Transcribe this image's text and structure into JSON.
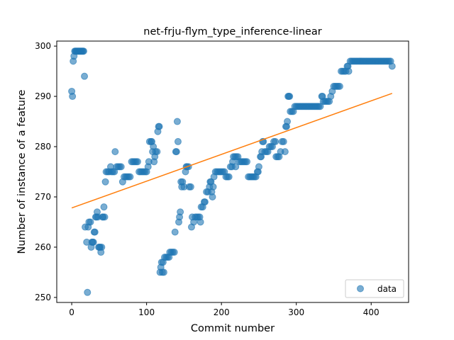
{
  "chart_data": {
    "type": "scatter",
    "title": "net-frju-flym_type_inference-linear",
    "xlabel": "Commit number",
    "ylabel": "Number of instance of a feature",
    "xlim": [
      -20,
      450
    ],
    "ylim": [
      249,
      301
    ],
    "xticks": [
      "0",
      "100",
      "200",
      "300",
      "400"
    ],
    "yticks": [
      "250",
      "260",
      "270",
      "280",
      "290",
      "300"
    ],
    "legend": {
      "position": "bottom-right",
      "entries": [
        "data"
      ]
    },
    "colors": {
      "data": "#1f77b4",
      "fit": "#ff7f0e"
    },
    "grid": false,
    "series": [
      {
        "name": "data",
        "points": [
          [
            0,
            291
          ],
          [
            1,
            290
          ],
          [
            2,
            297
          ],
          [
            3,
            298
          ],
          [
            4,
            299
          ],
          [
            5,
            299
          ],
          [
            6,
            299
          ],
          [
            7,
            299
          ],
          [
            8,
            299
          ],
          [
            9,
            299
          ],
          [
            10,
            299
          ],
          [
            11,
            299
          ],
          [
            12,
            299
          ],
          [
            13,
            299
          ],
          [
            14,
            299
          ],
          [
            15,
            299
          ],
          [
            16,
            299
          ],
          [
            17,
            294
          ],
          [
            18,
            264
          ],
          [
            20,
            261
          ],
          [
            21,
            251
          ],
          [
            22,
            264
          ],
          [
            23,
            265
          ],
          [
            25,
            265
          ],
          [
            26,
            260
          ],
          [
            27,
            261
          ],
          [
            28,
            261
          ],
          [
            29,
            261
          ],
          [
            30,
            263
          ],
          [
            31,
            263
          ],
          [
            32,
            266
          ],
          [
            33,
            266
          ],
          [
            34,
            267
          ],
          [
            35,
            266
          ],
          [
            36,
            260
          ],
          [
            37,
            260
          ],
          [
            38,
            260
          ],
          [
            39,
            259
          ],
          [
            40,
            260
          ],
          [
            41,
            266
          ],
          [
            42,
            266
          ],
          [
            43,
            268
          ],
          [
            44,
            266
          ],
          [
            45,
            273
          ],
          [
            46,
            275
          ],
          [
            48,
            275
          ],
          [
            50,
            275
          ],
          [
            52,
            276
          ],
          [
            53,
            275
          ],
          [
            55,
            275
          ],
          [
            57,
            275
          ],
          [
            58,
            279
          ],
          [
            60,
            276
          ],
          [
            62,
            276
          ],
          [
            64,
            276
          ],
          [
            66,
            276
          ],
          [
            68,
            273
          ],
          [
            70,
            274
          ],
          [
            72,
            274
          ],
          [
            74,
            274
          ],
          [
            76,
            274
          ],
          [
            78,
            274
          ],
          [
            80,
            277
          ],
          [
            82,
            277
          ],
          [
            84,
            277
          ],
          [
            86,
            277
          ],
          [
            88,
            277
          ],
          [
            90,
            275
          ],
          [
            92,
            275
          ],
          [
            94,
            275
          ],
          [
            96,
            275
          ],
          [
            98,
            275
          ],
          [
            100,
            275
          ],
          [
            102,
            276
          ],
          [
            103,
            277
          ],
          [
            104,
            281
          ],
          [
            106,
            281
          ],
          [
            107,
            281
          ],
          [
            108,
            279
          ],
          [
            109,
            280
          ],
          [
            110,
            277
          ],
          [
            111,
            278
          ],
          [
            112,
            279
          ],
          [
            114,
            279
          ],
          [
            115,
            283
          ],
          [
            116,
            284
          ],
          [
            117,
            284
          ],
          [
            118,
            255
          ],
          [
            119,
            256
          ],
          [
            120,
            257
          ],
          [
            121,
            255
          ],
          [
            122,
            257
          ],
          [
            123,
            255
          ],
          [
            124,
            258
          ],
          [
            126,
            258
          ],
          [
            128,
            258
          ],
          [
            130,
            258
          ],
          [
            131,
            259
          ],
          [
            133,
            259
          ],
          [
            135,
            259
          ],
          [
            137,
            259
          ],
          [
            138,
            263
          ],
          [
            139,
            279
          ],
          [
            140,
            279
          ],
          [
            141,
            285
          ],
          [
            142,
            281
          ],
          [
            143,
            265
          ],
          [
            144,
            266
          ],
          [
            145,
            267
          ],
          [
            146,
            273
          ],
          [
            147,
            272
          ],
          [
            148,
            273
          ],
          [
            150,
            272
          ],
          [
            152,
            275
          ],
          [
            153,
            276
          ],
          [
            154,
            276
          ],
          [
            156,
            276
          ],
          [
            157,
            272
          ],
          [
            159,
            272
          ],
          [
            160,
            264
          ],
          [
            161,
            266
          ],
          [
            163,
            265
          ],
          [
            165,
            266
          ],
          [
            167,
            266
          ],
          [
            169,
            266
          ],
          [
            171,
            266
          ],
          [
            172,
            265
          ],
          [
            173,
            268
          ],
          [
            175,
            268
          ],
          [
            177,
            269
          ],
          [
            178,
            269
          ],
          [
            180,
            271
          ],
          [
            182,
            271
          ],
          [
            184,
            272
          ],
          [
            185,
            273
          ],
          [
            186,
            273
          ],
          [
            187,
            271
          ],
          [
            188,
            270
          ],
          [
            189,
            272
          ],
          [
            190,
            274
          ],
          [
            192,
            275
          ],
          [
            194,
            275
          ],
          [
            196,
            275
          ],
          [
            198,
            275
          ],
          [
            200,
            275
          ],
          [
            202,
            275
          ],
          [
            204,
            275
          ],
          [
            206,
            274
          ],
          [
            208,
            274
          ],
          [
            210,
            274
          ],
          [
            212,
            276
          ],
          [
            214,
            276
          ],
          [
            215,
            277
          ],
          [
            216,
            278
          ],
          [
            218,
            278
          ],
          [
            219,
            276
          ],
          [
            220,
            278
          ],
          [
            222,
            278
          ],
          [
            224,
            277
          ],
          [
            226,
            277
          ],
          [
            228,
            277
          ],
          [
            230,
            277
          ],
          [
            232,
            277
          ],
          [
            234,
            277
          ],
          [
            236,
            274
          ],
          [
            238,
            274
          ],
          [
            240,
            274
          ],
          [
            242,
            274
          ],
          [
            244,
            274
          ],
          [
            246,
            274
          ],
          [
            248,
            275
          ],
          [
            249,
            275
          ],
          [
            250,
            276
          ],
          [
            252,
            278
          ],
          [
            253,
            278
          ],
          [
            254,
            279
          ],
          [
            255,
            281
          ],
          [
            256,
            281
          ],
          [
            258,
            279
          ],
          [
            260,
            279
          ],
          [
            262,
            279
          ],
          [
            264,
            280
          ],
          [
            266,
            280
          ],
          [
            268,
            280
          ],
          [
            270,
            281
          ],
          [
            272,
            281
          ],
          [
            273,
            278
          ],
          [
            275,
            278
          ],
          [
            277,
            278
          ],
          [
            279,
            279
          ],
          [
            281,
            281
          ],
          [
            283,
            281
          ],
          [
            285,
            279
          ],
          [
            286,
            284
          ],
          [
            287,
            284
          ],
          [
            288,
            285
          ],
          [
            289,
            290
          ],
          [
            290,
            290
          ],
          [
            291,
            290
          ],
          [
            292,
            287
          ],
          [
            294,
            287
          ],
          [
            296,
            287
          ],
          [
            298,
            288
          ],
          [
            300,
            288
          ],
          [
            302,
            288
          ],
          [
            304,
            288
          ],
          [
            306,
            288
          ],
          [
            308,
            288
          ],
          [
            310,
            288
          ],
          [
            312,
            288
          ],
          [
            314,
            288
          ],
          [
            316,
            288
          ],
          [
            318,
            288
          ],
          [
            320,
            288
          ],
          [
            322,
            288
          ],
          [
            324,
            288
          ],
          [
            326,
            288
          ],
          [
            328,
            288
          ],
          [
            330,
            288
          ],
          [
            332,
            288
          ],
          [
            334,
            290
          ],
          [
            335,
            290
          ],
          [
            336,
            289
          ],
          [
            338,
            289
          ],
          [
            340,
            289
          ],
          [
            342,
            289
          ],
          [
            344,
            289
          ],
          [
            346,
            290
          ],
          [
            348,
            291
          ],
          [
            350,
            292
          ],
          [
            352,
            292
          ],
          [
            354,
            292
          ],
          [
            356,
            292
          ],
          [
            358,
            292
          ],
          [
            360,
            295
          ],
          [
            362,
            295
          ],
          [
            364,
            295
          ],
          [
            366,
            295
          ],
          [
            368,
            296
          ],
          [
            369,
            296
          ],
          [
            370,
            295
          ],
          [
            372,
            297
          ],
          [
            374,
            297
          ],
          [
            376,
            297
          ],
          [
            378,
            297
          ],
          [
            380,
            297
          ],
          [
            382,
            297
          ],
          [
            384,
            297
          ],
          [
            386,
            297
          ],
          [
            388,
            297
          ],
          [
            390,
            297
          ],
          [
            392,
            297
          ],
          [
            394,
            297
          ],
          [
            396,
            297
          ],
          [
            398,
            297
          ],
          [
            400,
            297
          ],
          [
            402,
            297
          ],
          [
            404,
            297
          ],
          [
            406,
            297
          ],
          [
            408,
            297
          ],
          [
            410,
            297
          ],
          [
            412,
            297
          ],
          [
            414,
            297
          ],
          [
            416,
            297
          ],
          [
            418,
            297
          ],
          [
            420,
            297
          ],
          [
            422,
            297
          ],
          [
            424,
            297
          ],
          [
            426,
            297
          ],
          [
            428,
            296
          ]
        ]
      }
    ],
    "fit": {
      "x": [
        0,
        428
      ],
      "y": [
        267.8,
        290.6
      ]
    }
  }
}
